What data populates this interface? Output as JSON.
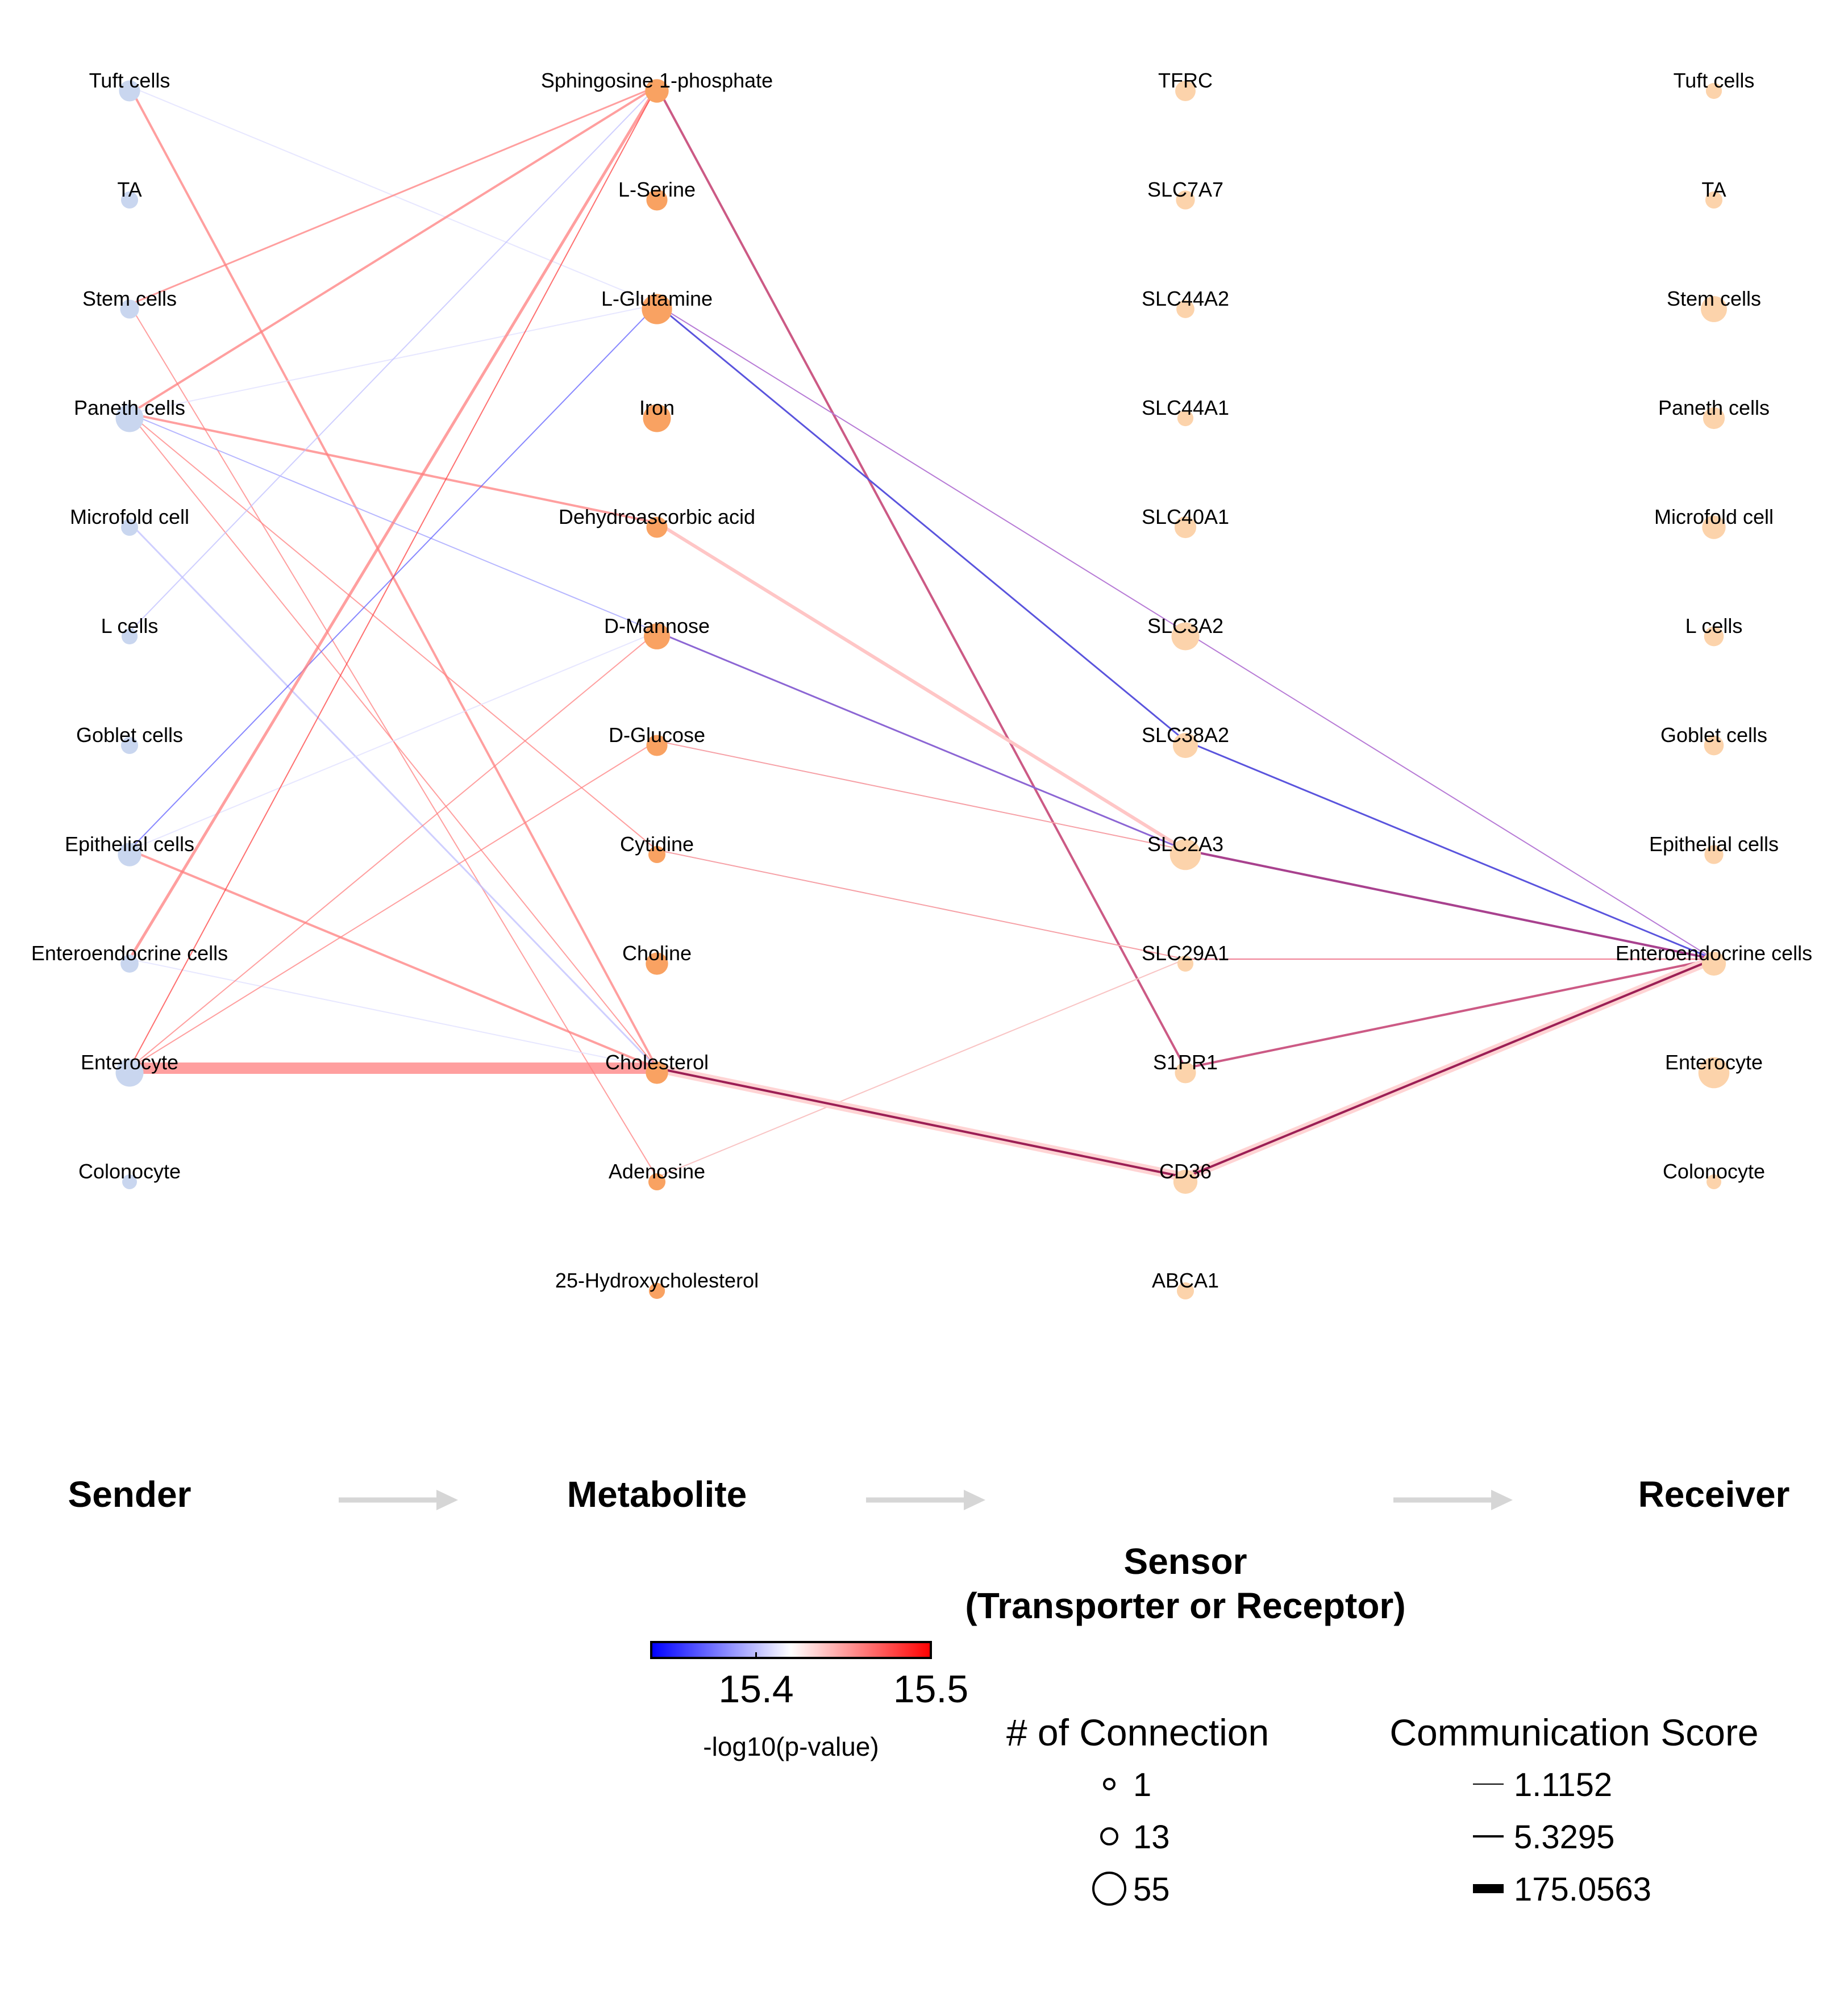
{
  "columns": {
    "sender": {
      "title": "Sender",
      "nodes": [
        {
          "name": "Tuft cells",
          "size": 9
        },
        {
          "name": "TA",
          "size": 4
        },
        {
          "name": "Stem cells",
          "size": 6
        },
        {
          "name": "Paneth cells",
          "size": 22
        },
        {
          "name": "Microfold cell",
          "size": 4
        },
        {
          "name": "L cells",
          "size": 3
        },
        {
          "name": "Goblet cells",
          "size": 4
        },
        {
          "name": "Epithelial cells",
          "size": 13
        },
        {
          "name": "Enteroendocrine cells",
          "size": 5
        },
        {
          "name": "Enterocyte",
          "size": 22
        },
        {
          "name": "Colonocyte",
          "size": 2
        }
      ]
    },
    "metabolite": {
      "title": "Metabolite",
      "nodes": [
        {
          "name": "Sphingosine 1-phosphate",
          "size": 13
        },
        {
          "name": "L-Serine",
          "size": 9
        },
        {
          "name": "L-Glutamine",
          "size": 28
        },
        {
          "name": "Iron",
          "size": 22
        },
        {
          "name": "Dehydroascorbic acid",
          "size": 9
        },
        {
          "name": "D-Mannose",
          "size": 18
        },
        {
          "name": "D-Glucose",
          "size": 9
        },
        {
          "name": "Cytidine",
          "size": 4
        },
        {
          "name": "Choline",
          "size": 11
        },
        {
          "name": "Cholesterol",
          "size": 11
        },
        {
          "name": "Adenosine",
          "size": 4
        },
        {
          "name": "25-Hydroxycholesterol",
          "size": 3
        }
      ]
    },
    "sensor": {
      "title": "Sensor\n(Transporter or Receptor)",
      "title_lines": [
        "Sensor",
        "(Transporter or Receptor)"
      ],
      "nodes": [
        {
          "name": "TFRC",
          "size": 8
        },
        {
          "name": "SLC7A7",
          "size": 6
        },
        {
          "name": "SLC44A2",
          "size": 5
        },
        {
          "name": "SLC44A1",
          "size": 3
        },
        {
          "name": "SLC40A1",
          "size": 10
        },
        {
          "name": "SLC3A2",
          "size": 22
        },
        {
          "name": "SLC38A2",
          "size": 16
        },
        {
          "name": "SLC2A3",
          "size": 30
        },
        {
          "name": "SLC29A1",
          "size": 3
        },
        {
          "name": "S1PR1",
          "size": 9
        },
        {
          "name": "CD36",
          "size": 14
        },
        {
          "name": "ABCA1",
          "size": 4
        }
      ]
    },
    "receiver": {
      "title": "Receiver",
      "nodes": [
        {
          "name": "Tuft cells",
          "size": 3
        },
        {
          "name": "TA",
          "size": 4
        },
        {
          "name": "Stem cells",
          "size": 18
        },
        {
          "name": "Paneth cells",
          "size": 10
        },
        {
          "name": "Microfold cell",
          "size": 13
        },
        {
          "name": "L cells",
          "size": 7
        },
        {
          "name": "Goblet cells",
          "size": 7
        },
        {
          "name": "Epithelial cells",
          "size": 6
        },
        {
          "name": "Enteroendocrine cells",
          "size": 14
        },
        {
          "name": "Enterocyte",
          "size": 30
        },
        {
          "name": "Colonocyte",
          "size": 2
        }
      ]
    }
  },
  "sender_metabolite_links": [
    {
      "from": "Tuft cells",
      "to": "L-Glutamine",
      "score": 2,
      "pval": 15.41
    },
    {
      "from": "Tuft cells",
      "to": "Cholesterol",
      "score": 4,
      "pval": 15.46
    },
    {
      "from": "Stem cells",
      "to": "Sphingosine 1-phosphate",
      "score": 3,
      "pval": 15.46
    },
    {
      "from": "Stem cells",
      "to": "Adenosine",
      "score": 2,
      "pval": 15.46
    },
    {
      "from": "Paneth cells",
      "to": "Sphingosine 1-phosphate",
      "score": 4,
      "pval": 15.46
    },
    {
      "from": "Paneth cells",
      "to": "L-Glutamine",
      "score": 2,
      "pval": 15.41
    },
    {
      "from": "Paneth cells",
      "to": "Dehydroascorbic acid",
      "score": 4,
      "pval": 15.46
    },
    {
      "from": "Paneth cells",
      "to": "D-Mannose",
      "score": 2,
      "pval": 15.39
    },
    {
      "from": "Paneth cells",
      "to": "Cytidine",
      "score": 2,
      "pval": 15.46
    },
    {
      "from": "Paneth cells",
      "to": "Cholesterol",
      "score": 2,
      "pval": 15.46
    },
    {
      "from": "Microfold cell",
      "to": "Cholesterol",
      "score": 3,
      "pval": 15.4
    },
    {
      "from": "L cells",
      "to": "Sphingosine 1-phosphate",
      "score": 2,
      "pval": 15.4
    },
    {
      "from": "Epithelial cells",
      "to": "L-Glutamine",
      "score": 2,
      "pval": 15.37
    },
    {
      "from": "Epithelial cells",
      "to": "D-Mannose",
      "score": 2,
      "pval": 15.41
    },
    {
      "from": "Epithelial cells",
      "to": "Cholesterol",
      "score": 4,
      "pval": 15.46
    },
    {
      "from": "Enteroendocrine cells",
      "to": "Sphingosine 1-phosphate",
      "score": 5,
      "pval": 15.46
    },
    {
      "from": "Enteroendocrine cells",
      "to": "Cholesterol",
      "score": 2,
      "pval": 15.41
    },
    {
      "from": "Enterocyte",
      "to": "Sphingosine 1-phosphate",
      "score": 2,
      "pval": 15.48
    },
    {
      "from": "Enterocyte",
      "to": "D-Mannose",
      "score": 2,
      "pval": 15.46
    },
    {
      "from": "Enterocyte",
      "to": "D-Glucose",
      "score": 2,
      "pval": 15.46
    },
    {
      "from": "Enterocyte",
      "to": "Cholesterol",
      "score": 20,
      "pval": 15.46
    }
  ],
  "metabolite_sensor_links": [
    {
      "from": "Sphingosine 1-phosphate",
      "to": "S1PR1",
      "color": "#cc5a85",
      "width": 4
    },
    {
      "from": "L-Glutamine",
      "to": "SLC38A2",
      "color": "#5a54dd",
      "width": 3
    },
    {
      "from": "L-Glutamine",
      "to": "SLC3A2",
      "color": "#b77bd6",
      "width": 2
    },
    {
      "from": "Dehydroascorbic acid",
      "to": "SLC2A3",
      "color": "#ffc6c6",
      "width": 6
    },
    {
      "from": "D-Mannose",
      "to": "SLC2A3",
      "color": "#8c66d4",
      "width": 3
    },
    {
      "from": "D-Glucose",
      "to": "SLC2A3",
      "color": "#f6a0a6",
      "width": 2
    },
    {
      "from": "Cytidine",
      "to": "SLC29A1",
      "color": "#f6a0a6",
      "width": 2
    },
    {
      "from": "Adenosine",
      "to": "SLC29A1",
      "color": "#f9c4c4",
      "width": 2
    },
    {
      "from": "Cholesterol",
      "to": "CD36",
      "color": "#ffd4d4",
      "width": 16
    },
    {
      "from": "Cholesterol",
      "to": "CD36",
      "color": "#9c1f55",
      "width": 4
    }
  ],
  "sensor_receiver_links": [
    {
      "from": "SLC3A2",
      "to": "Enteroendocrine cells",
      "color": "#b77bd6",
      "width": 2
    },
    {
      "from": "SLC38A2",
      "to": "Enteroendocrine cells",
      "color": "#5a54dd",
      "width": 3
    },
    {
      "from": "SLC2A3",
      "to": "Enteroendocrine cells",
      "color": "#a8418e",
      "width": 4
    },
    {
      "from": "SLC29A1",
      "to": "Enteroendocrine cells",
      "color": "#f07e94",
      "width": 2
    },
    {
      "from": "S1PR1",
      "to": "Enteroendocrine cells",
      "color": "#cc5a85",
      "width": 4
    },
    {
      "from": "CD36",
      "to": "Enteroendocrine cells",
      "color": "#ffd4d4",
      "width": 16
    },
    {
      "from": "CD36",
      "to": "Enteroendocrine cells",
      "color": "#9c1f55",
      "width": 4
    }
  ],
  "colors": {
    "sender_node": "#c9d6ef",
    "metabolite_node": "#f9a262",
    "sensor_node": "#fcd3ab",
    "receiver_node": "#fcd3ab",
    "arrow": "#d6d6d6"
  },
  "colorbar": {
    "label": "-log10(p-value)",
    "min": 15.34,
    "max": 15.5,
    "ticks": [
      {
        "value": 15.4,
        "label": "15.4"
      },
      {
        "value": 15.5,
        "label": "15.5"
      }
    ],
    "colors": [
      "#0000ff",
      "#ffffff",
      "#ff0000"
    ]
  },
  "legend_connection": {
    "title": "# of Connection",
    "items": [
      {
        "label": "1",
        "value": 1
      },
      {
        "label": "13",
        "value": 13
      },
      {
        "label": "55",
        "value": 55
      }
    ]
  },
  "legend_score": {
    "title": "Communication Score",
    "items": [
      {
        "label": "1.1152",
        "value": 1.1152
      },
      {
        "label": "5.3295",
        "value": 5.3295
      },
      {
        "label": "175.0563",
        "value": 175.0563
      }
    ]
  }
}
